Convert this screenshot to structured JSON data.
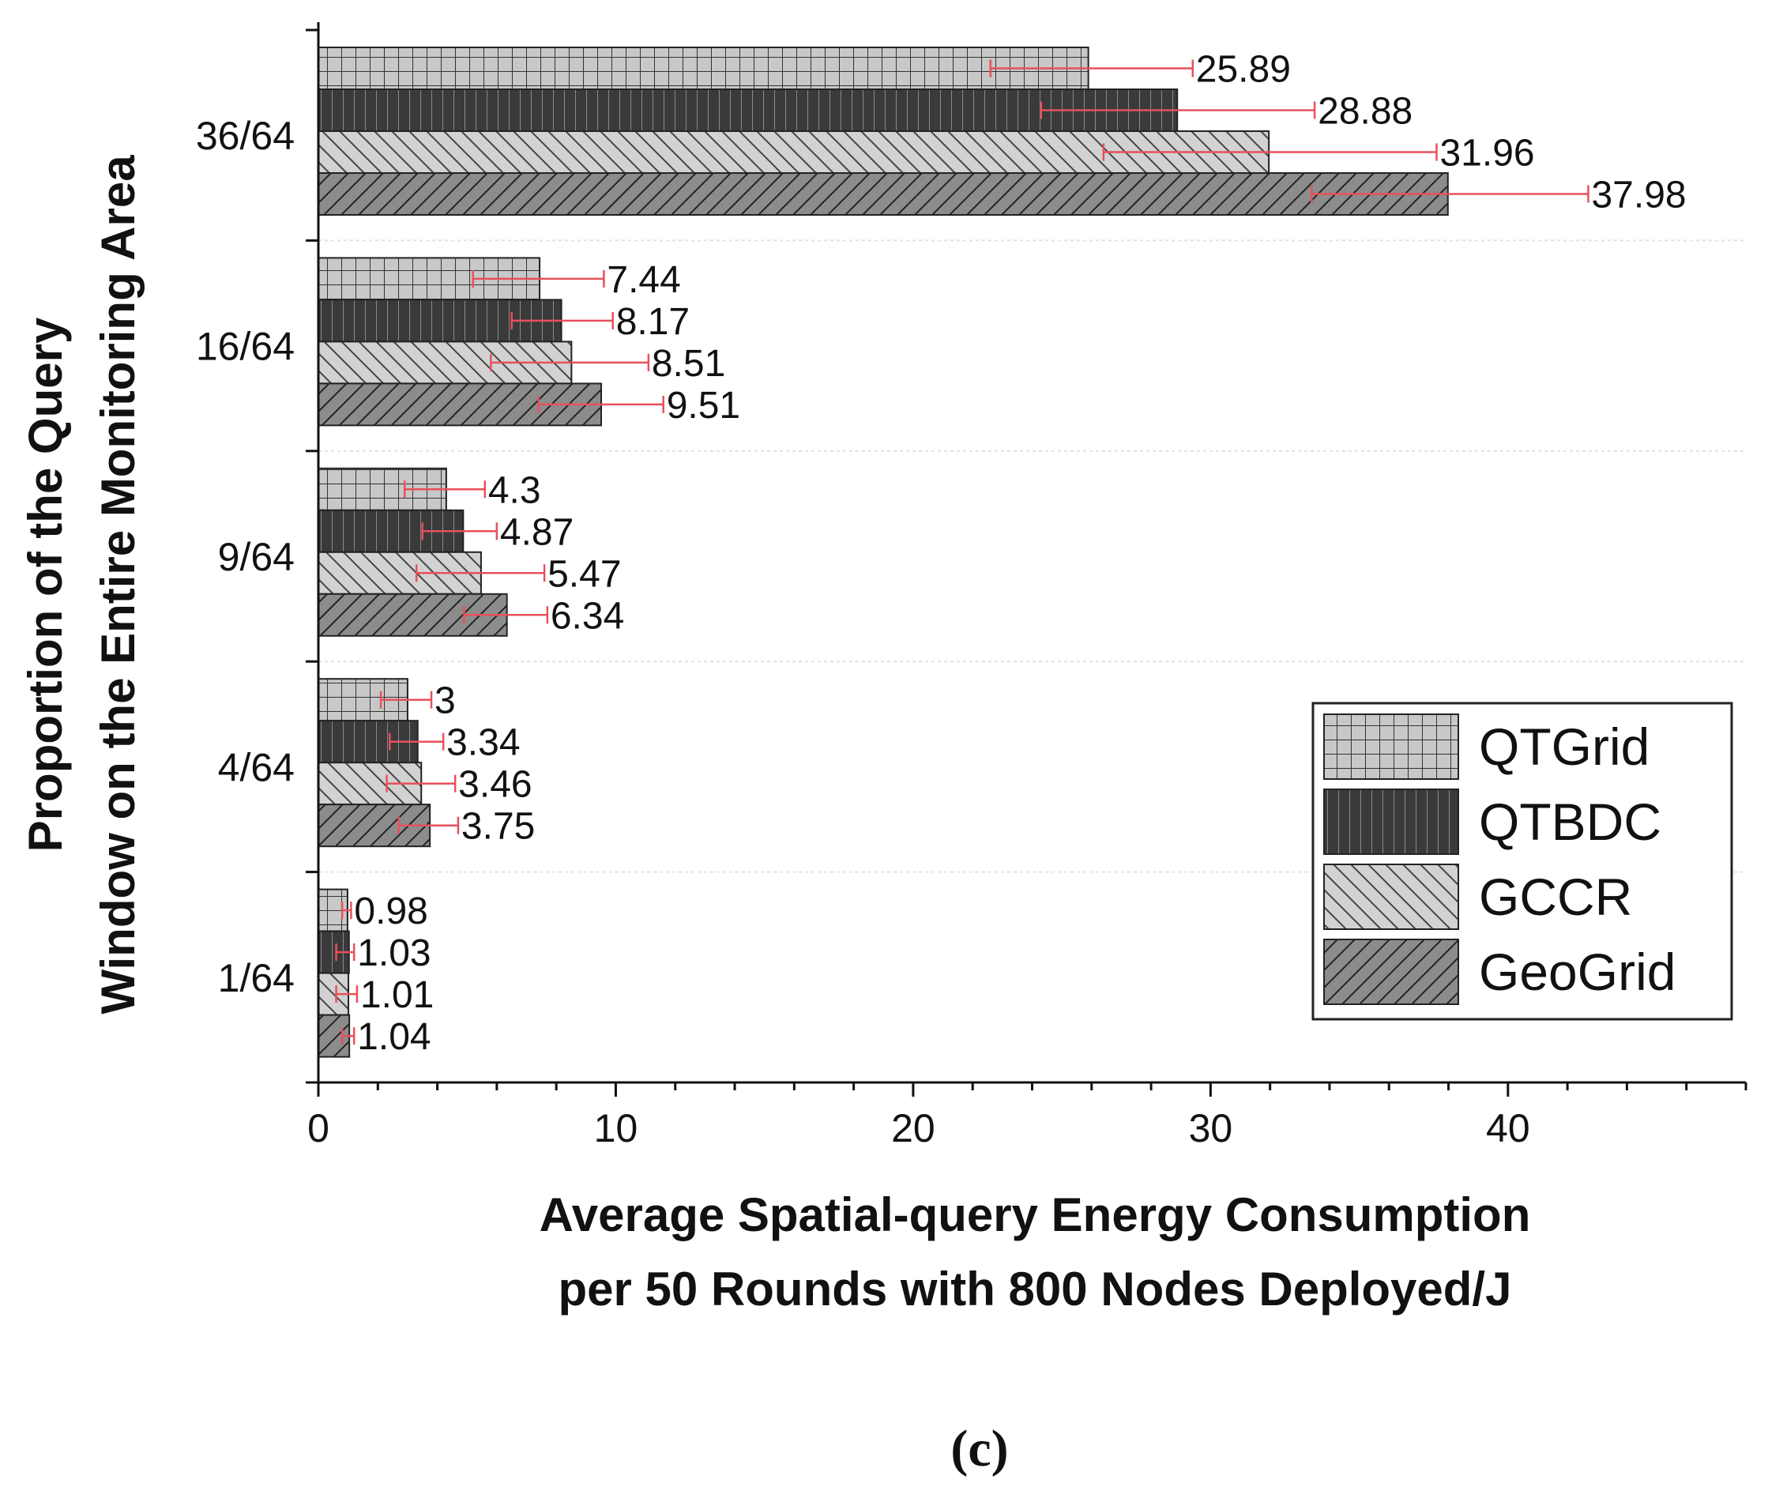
{
  "chart_data": {
    "type": "bar",
    "orientation": "horizontal",
    "categories": [
      "36/64",
      "16/64",
      "9/64",
      "4/64",
      "1/64"
    ],
    "series": [
      {
        "name": "QTGrid",
        "values": [
          25.89,
          7.44,
          4.3,
          3,
          0.98
        ],
        "labels": [
          "25.89",
          "7.44",
          "4.3",
          "3",
          "0.98"
        ],
        "err_low": [
          22.6,
          5.2,
          2.9,
          2.1,
          0.8
        ],
        "err_high": [
          29.4,
          9.6,
          5.6,
          3.8,
          1.1
        ]
      },
      {
        "name": "QTBDC",
        "values": [
          28.88,
          8.17,
          4.87,
          3.34,
          1.03
        ],
        "labels": [
          "28.88",
          "8.17",
          "4.87",
          "3.34",
          "1.03"
        ],
        "err_low": [
          24.3,
          6.5,
          3.5,
          2.4,
          0.6
        ],
        "err_high": [
          33.5,
          9.9,
          6.0,
          4.2,
          1.2
        ]
      },
      {
        "name": "GCCR",
        "values": [
          31.96,
          8.51,
          5.47,
          3.46,
          1.01
        ],
        "labels": [
          "31.96",
          "8.51",
          "5.47",
          "3.46",
          "1.01"
        ],
        "err_low": [
          26.4,
          5.8,
          3.3,
          2.3,
          0.6
        ],
        "err_high": [
          37.6,
          11.1,
          7.6,
          4.6,
          1.3
        ]
      },
      {
        "name": "GeoGrid",
        "values": [
          37.98,
          9.51,
          6.34,
          3.75,
          1.04
        ],
        "labels": [
          "37.98",
          "9.51",
          "6.34",
          "3.75",
          "1.04"
        ],
        "err_low": [
          33.4,
          7.4,
          4.9,
          2.7,
          0.8
        ],
        "err_high": [
          42.7,
          11.6,
          7.7,
          4.7,
          1.2
        ]
      }
    ],
    "xlim": [
      0,
      48
    ],
    "xticks": [
      "0",
      "10",
      "20",
      "30",
      "40"
    ],
    "xlabel": [
      "Average Spatial-query Energy Consumption",
      "per 50 Rounds with 800 Nodes Deployed/J"
    ],
    "ylabel": [
      "Proportion of the Query",
      "Window on the Entire Monitoring Area"
    ],
    "panel_label": "(c)",
    "legend_position": "bottom-right",
    "colors": {
      "QTGrid": "#c8c8c8",
      "QTBDC": "#3a3a3a",
      "GCCR": "#cfcfcf",
      "GeoGrid": "#8a8a8a",
      "error_bar": "#e8505b"
    },
    "patterns": {
      "QTGrid": "grid",
      "QTBDC": "vertical-lines",
      "GCCR": "backslash-hatch",
      "GeoGrid": "slash-hatch"
    }
  }
}
